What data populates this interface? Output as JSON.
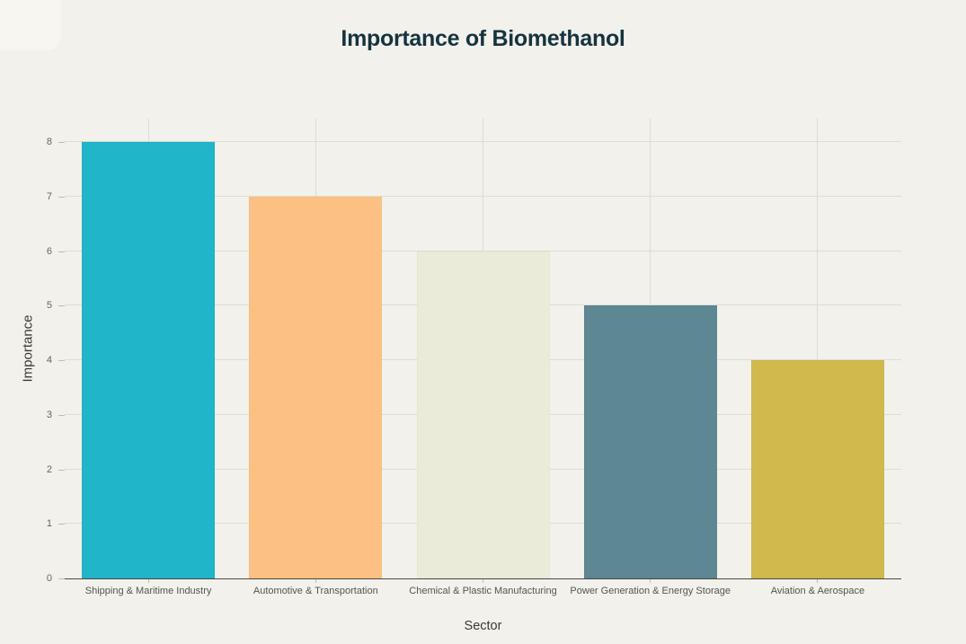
{
  "chart_data": {
    "type": "bar",
    "title": "Importance of Biomethanol",
    "xlabel": "Sector",
    "ylabel": "Importance",
    "categories": [
      "Shipping & Maritime Industry",
      "Automotive & Transportation",
      "Chemical & Plastic Manufacturing",
      "Power Generation & Energy Storage",
      "Aviation & Aerospace"
    ],
    "values": [
      8,
      7,
      6,
      5,
      4
    ],
    "bar_colors": [
      "#20b5c9",
      "#fcc182",
      "#ebebd9",
      "#5c8793",
      "#d1b94d"
    ],
    "ylim": [
      0,
      8
    ],
    "ytick_step": 1,
    "yticks": [
      0,
      1,
      2,
      3,
      4,
      5,
      6,
      7,
      8
    ],
    "grid": true,
    "legend": false
  },
  "colors": {
    "background": "#f2f1ec",
    "title": "#16333f",
    "gridline": "#dcddd3",
    "axis_line": "#4a4a46",
    "tick_mark": "#bcbcb3",
    "tick_label": "#64645e",
    "category_label": "#55554f",
    "axis_title": "#3a3a34"
  }
}
